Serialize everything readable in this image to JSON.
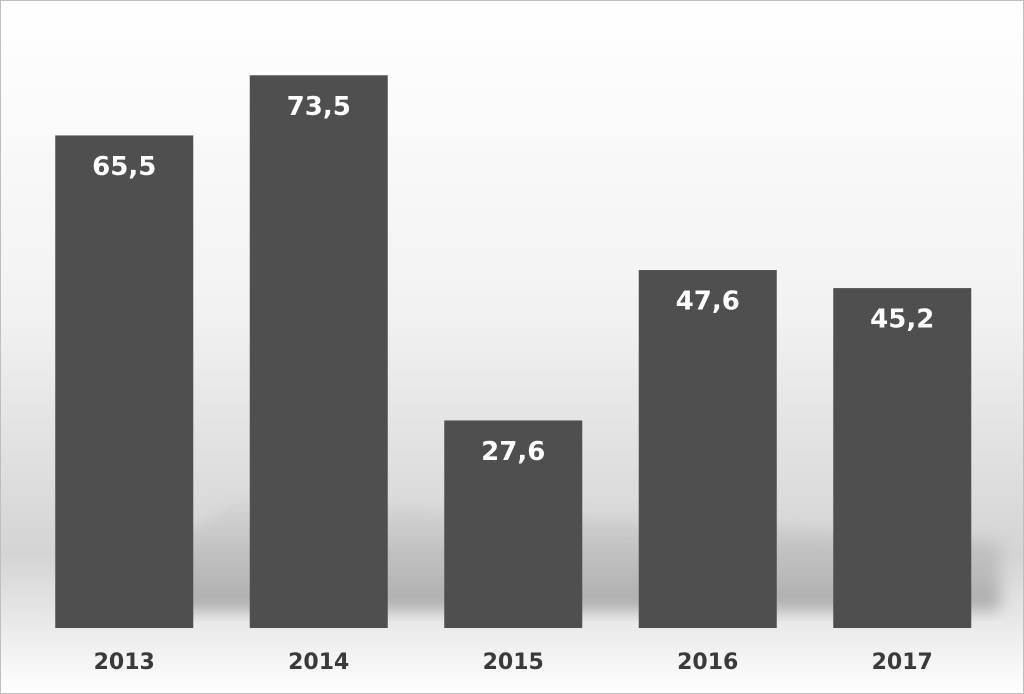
{
  "chart_data": {
    "type": "bar",
    "categories": [
      "2013",
      "2014",
      "2015",
      "2016",
      "2017"
    ],
    "values": [
      65.5,
      73.5,
      27.6,
      47.6,
      45.2
    ],
    "value_labels": [
      "65,5",
      "73,5",
      "27,6",
      "47,6",
      "45,2"
    ],
    "color": "#4f4f4f"
  }
}
